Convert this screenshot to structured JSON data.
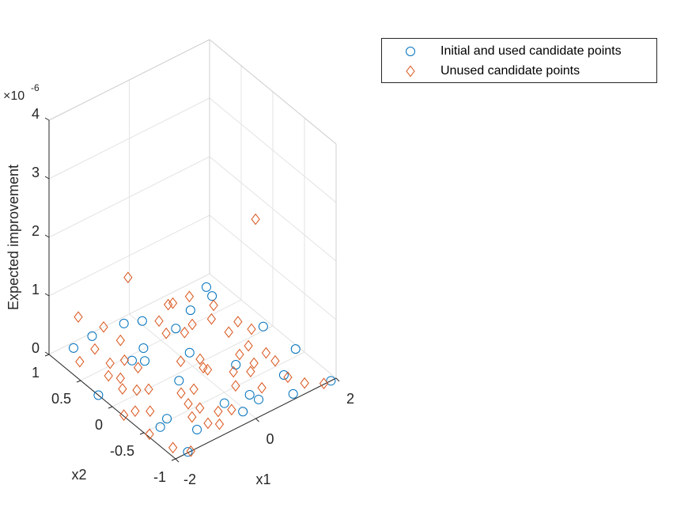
{
  "chart_data": {
    "type": "scatter3",
    "xlabel": "x1",
    "ylabel": "x2",
    "zlabel": "Expected improvement",
    "z_multiplier": "×10",
    "z_exponent": "-6",
    "xlim": [
      -2,
      2
    ],
    "ylim": [
      -1,
      1
    ],
    "zlim": [
      0,
      4
    ],
    "xticks": [
      -2,
      0,
      2
    ],
    "yticks": [
      -1,
      -0.5,
      0,
      0.5,
      1
    ],
    "zticks": [
      0,
      1,
      2,
      3,
      4
    ],
    "grid": true,
    "legend_location": "northeastoutside",
    "series": [
      {
        "name": "Initial and used candidate points",
        "color": "#0072BD",
        "marker": "circle",
        "x": [
          -1.5,
          -0.99,
          -0.26,
          0.07,
          -0.42,
          0.45,
          1.02,
          1.7,
          1.62,
          0.21,
          -2.0,
          -0.83,
          -0.64,
          -0.48,
          -1.38,
          -1.64,
          -1.12,
          -1.68,
          -0.2,
          -0.07,
          0.35,
          0.4,
          0.7,
          1.84,
          1.25,
          1.92,
          1.04,
          1.87
        ],
        "y": [
          0.93,
          0.96,
          0.92,
          0.84,
          0.51,
          0.55,
          0.68,
          0.86,
          0.72,
          0.18,
          0.22,
          0.43,
          0.35,
          -0.09,
          -0.47,
          -0.53,
          -0.78,
          -0.99,
          -0.63,
          -0.84,
          -0.68,
          -0.79,
          -0.24,
          0.05,
          -0.65,
          -0.41,
          -0.93,
          -1.0
        ],
        "z": [
          0,
          0,
          0,
          0,
          0,
          0,
          0,
          0,
          0,
          0,
          0,
          0,
          0,
          0,
          0,
          0,
          0,
          0,
          0,
          0,
          0,
          0,
          0,
          0,
          0,
          0,
          0,
          0
        ]
      },
      {
        "name": "Unused candidate points",
        "color": "#D95319",
        "marker": "diamond",
        "x": [
          -1.66,
          -1.19,
          -1.22,
          -1.48,
          -0.63,
          -0.94,
          -0.87,
          -1.34,
          -1.51,
          -1.31,
          -1.11,
          -1.98,
          -1.73,
          -1.5,
          -1.94,
          -1.83,
          0.78,
          0.33,
          0.21,
          1.26,
          0.78,
          1.18,
          -0.09,
          0.25,
          0.14,
          -0.41,
          -0.68,
          -0.77,
          -0.96,
          -0.67,
          -0.83,
          -1.62,
          -0.45,
          1.2,
          1.54,
          1.61,
          1.25,
          0.95,
          1.01,
          1.39,
          0.53,
          0.3,
          -0.21,
          -0.67,
          0.67,
          1.38,
          1.27,
          1.42,
          1.71,
          0.51,
          0.17,
          0.8,
          1.47,
          0.88,
          -1.35,
          -0.64,
          -0.19,
          1.9
        ],
        "y": [
          0.73,
          0.79,
          0.53,
          0.39,
          0.74,
          0.48,
          0.31,
          0.29,
          0.15,
          0.05,
          -0.01,
          -0.17,
          -0.19,
          -0.28,
          -0.55,
          -0.85,
          0.88,
          0.74,
          0.55,
          0.85,
          0.5,
          0.45,
          0.13,
          0.04,
          -0.08,
          -0.28,
          -0.25,
          -0.42,
          -0.6,
          -0.54,
          -0.77,
          -1.0,
          -0.69,
          0.19,
          0.26,
          0.09,
          -0.09,
          -0.14,
          -0.33,
          -0.28,
          -0.31,
          -0.49,
          -0.75,
          -0.85,
          -0.67,
          -0.43,
          -0.7,
          -0.87,
          -0.99,
          0.45,
          -0.13,
          -0.41,
          0.6,
          0.87,
          0.95,
          1.0,
          0.9,
          0.21
        ],
        "z": [
          0,
          0,
          0,
          0,
          0,
          0,
          0,
          0,
          0,
          0,
          0,
          0,
          0,
          0,
          0,
          0,
          0,
          0,
          0,
          0,
          0,
          0,
          0,
          0,
          0,
          0,
          0,
          0,
          0,
          0,
          0,
          0,
          0,
          0,
          0,
          0,
          0,
          0,
          0,
          0,
          0,
          0,
          0,
          0,
          0,
          0,
          0,
          0,
          0,
          0,
          0,
          0,
          0,
          0,
          0.46,
          0,
          0.78,
          1.67
        ]
      }
    ]
  }
}
